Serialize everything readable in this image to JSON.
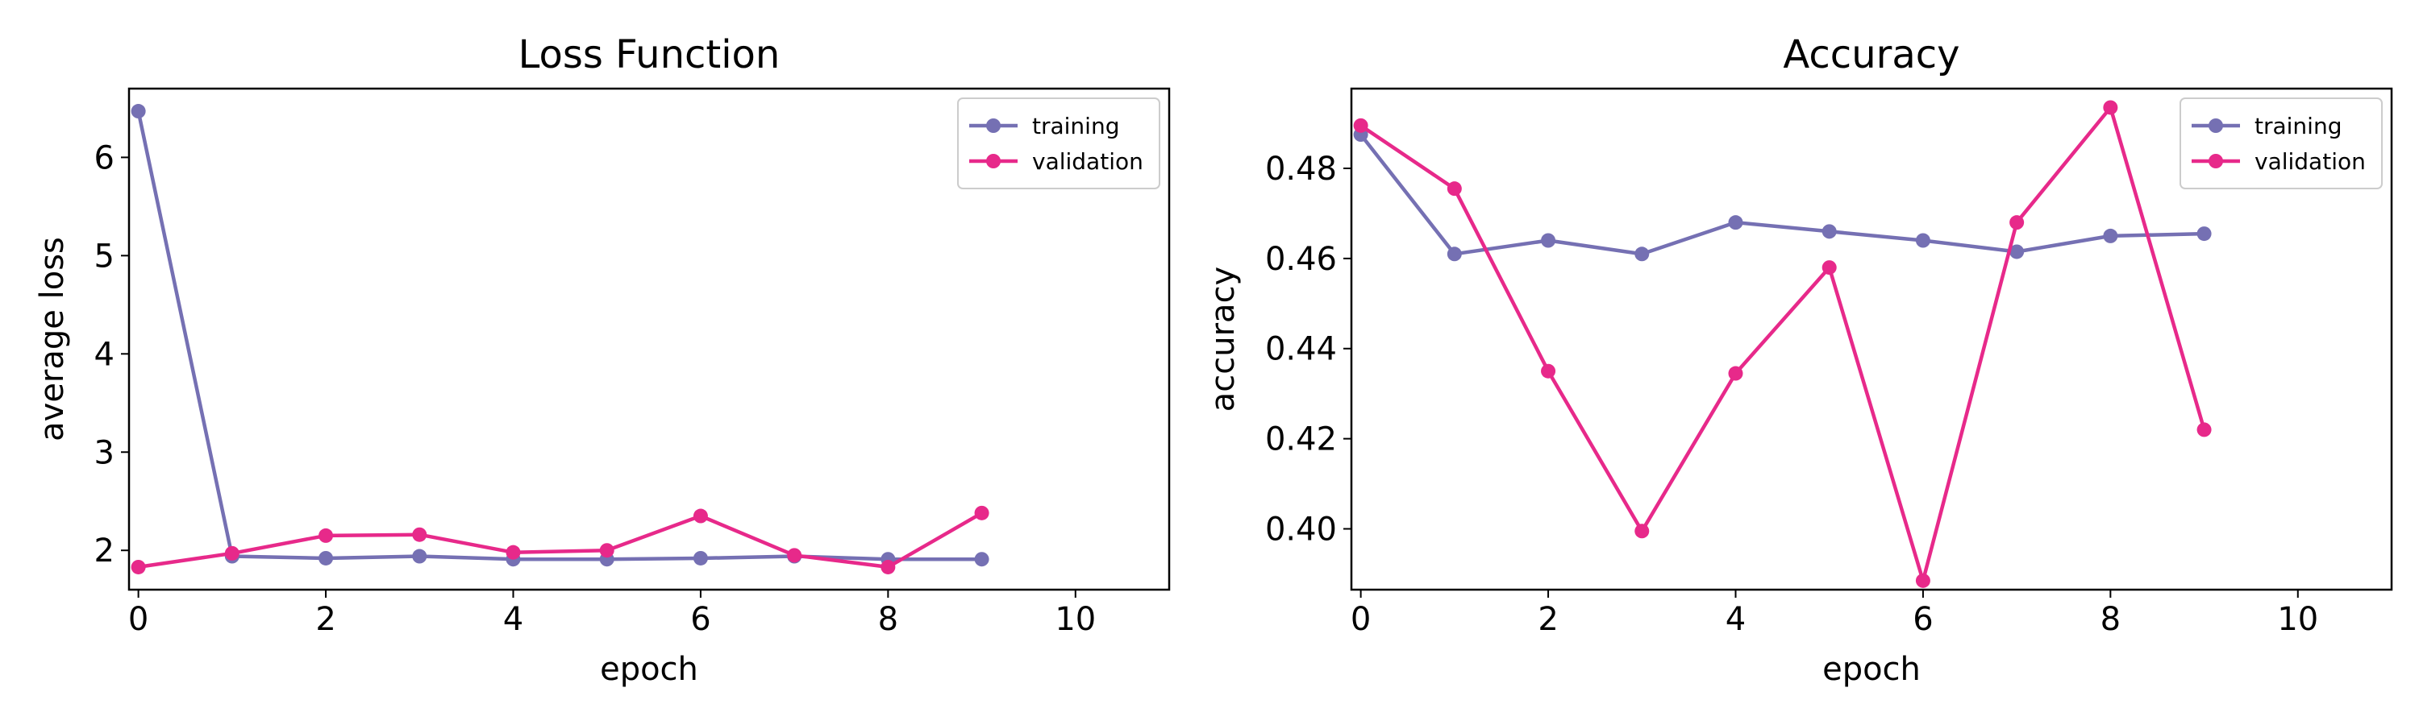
{
  "colors": {
    "training": "#7570b3",
    "validation": "#e7298a"
  },
  "chart_data": [
    {
      "type": "line",
      "title": "Loss Function",
      "xlabel": "epoch",
      "ylabel": "average loss",
      "xlim": [
        -0.1,
        11
      ],
      "ylim": [
        1.6,
        6.7
      ],
      "xticks": [
        0,
        2,
        4,
        6,
        8,
        10
      ],
      "xtick_labels": [
        "0",
        "2",
        "4",
        "6",
        "8",
        "10"
      ],
      "yticks": [
        2,
        3,
        4,
        5,
        6
      ],
      "ytick_labels": [
        "2",
        "3",
        "4",
        "5",
        "6"
      ],
      "x": [
        0,
        1,
        2,
        3,
        4,
        5,
        6,
        7,
        8,
        9
      ],
      "series": [
        {
          "name": "training",
          "values": [
            6.47,
            1.94,
            1.92,
            1.94,
            1.91,
            1.91,
            1.92,
            1.94,
            1.91,
            1.91
          ]
        },
        {
          "name": "validation",
          "values": [
            1.83,
            1.97,
            2.15,
            2.16,
            1.98,
            2.0,
            2.35,
            1.95,
            1.83,
            2.38
          ]
        }
      ],
      "legend": "upper right",
      "grid": false
    },
    {
      "type": "line",
      "title": "Accuracy",
      "xlabel": "epoch",
      "ylabel": "accuracy",
      "xlim": [
        -0.1,
        11
      ],
      "ylim": [
        0.3865,
        0.4977
      ],
      "xticks": [
        0,
        2,
        4,
        6,
        8,
        10
      ],
      "xtick_labels": [
        "0",
        "2",
        "4",
        "6",
        "8",
        "10"
      ],
      "yticks": [
        0.4,
        0.42,
        0.44,
        0.46,
        0.48
      ],
      "ytick_labels": [
        "0.40",
        "0.42",
        "0.44",
        "0.46",
        "0.48"
      ],
      "x": [
        0,
        1,
        2,
        3,
        4,
        5,
        6,
        7,
        8,
        9
      ],
      "series": [
        {
          "name": "training",
          "values": [
            0.4875,
            0.461,
            0.464,
            0.461,
            0.468,
            0.466,
            0.464,
            0.4615,
            0.465,
            0.4655
          ]
        },
        {
          "name": "validation",
          "values": [
            0.4895,
            0.4755,
            0.435,
            0.3995,
            0.4345,
            0.458,
            0.3885,
            0.468,
            0.4935,
            0.422
          ]
        }
      ],
      "legend": "upper right",
      "grid": false
    }
  ]
}
